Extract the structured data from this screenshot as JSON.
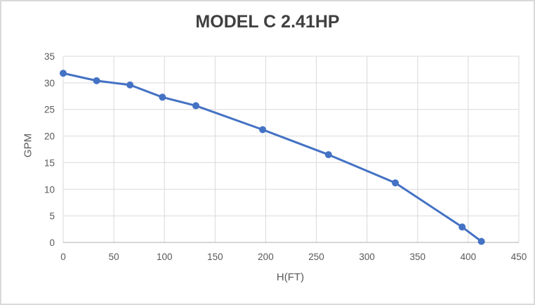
{
  "chart_data": {
    "type": "line",
    "title": "MODEL C 2.41HP",
    "xlabel": "H(FT)",
    "ylabel": "GPM",
    "series": [
      {
        "name": "MODEL C 2.41HP",
        "x": [
          0,
          33,
          66,
          98,
          131,
          197,
          262,
          328,
          394,
          413
        ],
        "y": [
          31.8,
          30.4,
          29.6,
          27.3,
          25.7,
          21.2,
          16.5,
          11.2,
          2.9,
          0.2
        ]
      }
    ],
    "xlim": [
      0,
      450
    ],
    "ylim": [
      0,
      35
    ],
    "x_ticks": [
      0,
      50,
      100,
      150,
      200,
      250,
      300,
      350,
      400,
      450
    ],
    "y_ticks": [
      0,
      5,
      10,
      15,
      20,
      25,
      30,
      35
    ],
    "grid": true,
    "legend": "none",
    "marker_style": "circle",
    "colors": {
      "line": "#4472c4",
      "marker": "#4472c4",
      "grid": "#d9d9d9",
      "axis_line": "#bfbfbf",
      "tick_label": "#595959",
      "axis_title": "#595959",
      "title": "#404040",
      "background": "#ffffff",
      "frame_border": "#d9d9d9"
    }
  }
}
